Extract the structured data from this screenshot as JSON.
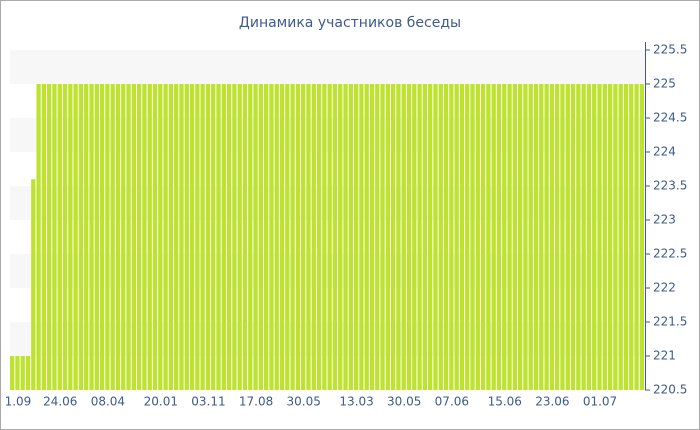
{
  "chart_data": {
    "type": "bar",
    "title": "Динамика участников беседы",
    "categories": [
      null,
      "1.09",
      null,
      null,
      null,
      null,
      null,
      null,
      null,
      "24.06",
      null,
      null,
      null,
      null,
      null,
      null,
      null,
      null,
      "08.04",
      null,
      null,
      null,
      null,
      null,
      null,
      null,
      null,
      null,
      "20.01",
      null,
      null,
      null,
      null,
      null,
      null,
      null,
      null,
      "03.11",
      null,
      null,
      null,
      null,
      null,
      null,
      null,
      null,
      "17.08",
      null,
      null,
      null,
      null,
      null,
      null,
      null,
      null,
      "30.05",
      null,
      null,
      null,
      null,
      null,
      null,
      null,
      null,
      null,
      "13.03",
      null,
      null,
      null,
      null,
      null,
      null,
      null,
      null,
      "30.05",
      null,
      null,
      null,
      null,
      null,
      null,
      null,
      null,
      "07.06",
      null,
      null,
      null,
      null,
      null,
      null,
      null,
      null,
      null,
      "15.06",
      null,
      null,
      null,
      null,
      null,
      null,
      null,
      null,
      "23.06",
      null,
      null,
      null,
      null,
      null,
      null,
      null,
      null,
      "01.07",
      null,
      null,
      null,
      null,
      null,
      null,
      null,
      null
    ],
    "values": [
      221,
      221,
      221,
      221,
      223.6,
      225,
      225,
      225,
      225,
      225,
      225,
      225,
      225,
      225,
      225,
      225,
      225,
      225,
      225,
      225,
      225,
      225,
      225,
      225,
      225,
      225,
      225,
      225,
      225,
      225,
      225,
      225,
      225,
      225,
      225,
      225,
      225,
      225,
      225,
      225,
      225,
      225,
      225,
      225,
      225,
      225,
      225,
      225,
      225,
      225,
      225,
      225,
      225,
      225,
      225,
      225,
      225,
      225,
      225,
      225,
      225,
      225,
      225,
      225,
      225,
      225,
      225,
      225,
      225,
      225,
      225,
      225,
      225,
      225,
      225,
      225,
      225,
      225,
      225,
      225,
      225,
      225,
      225,
      225,
      225,
      225,
      225,
      225,
      225,
      225,
      225,
      225,
      225,
      225,
      225,
      225,
      225,
      225,
      225,
      225,
      225,
      225,
      225,
      225,
      225,
      225,
      225,
      225,
      225,
      225,
      225,
      225,
      225,
      225,
      225,
      225,
      225,
      225,
      225,
      225
    ],
    "color": "#bde22f",
    "ylim": [
      220.5,
      225.5
    ],
    "yticks": [
      220.5,
      221,
      221.5,
      222,
      222.5,
      223,
      223.5,
      224,
      224.5,
      225,
      225.5
    ],
    "grid": true
  }
}
